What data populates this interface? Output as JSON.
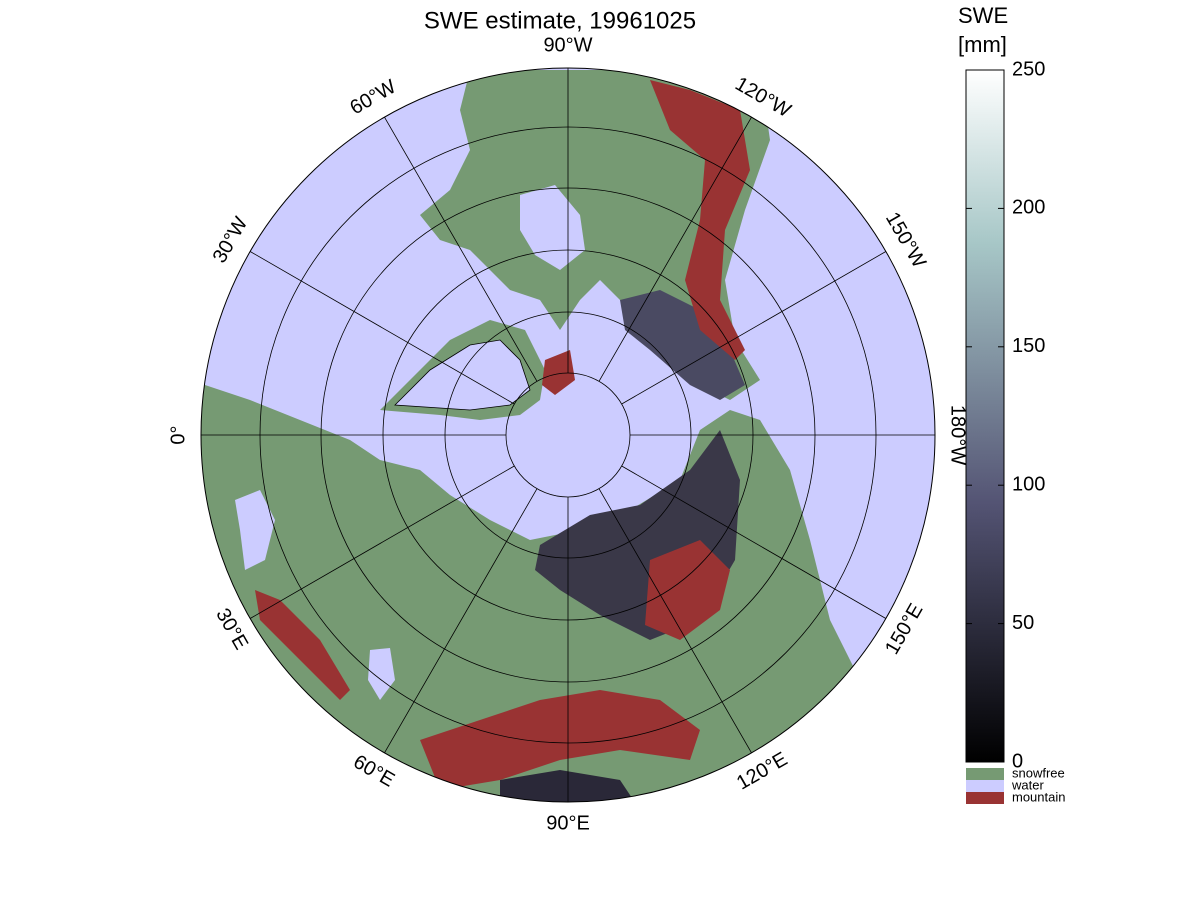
{
  "title": "SWE estimate, 19961025",
  "meridian_labels": [
    "90°W",
    "120°W",
    "150°W",
    "180°W",
    "150°E",
    "120°E",
    "90°E",
    "60°E",
    "30°E",
    "0°",
    "30°W",
    "60°W"
  ],
  "colorbar": {
    "label": [
      "SWE",
      "[mm]"
    ],
    "lim": [
      0,
      250
    ],
    "ticks": [
      0,
      50,
      100,
      150,
      200,
      250
    ]
  },
  "legend": [
    {
      "name": "snowfree",
      "color": "#769a73"
    },
    {
      "name": "water",
      "color": "#ccccff"
    },
    {
      "name": "mountain",
      "color": "#993333"
    }
  ]
}
